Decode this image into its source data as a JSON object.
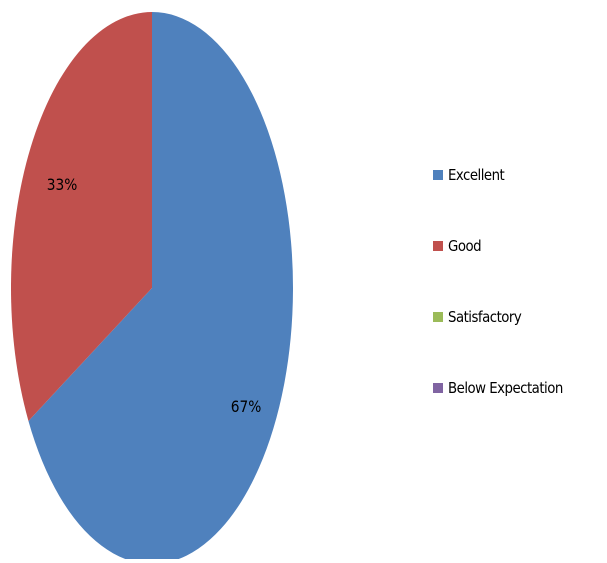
{
  "chart_data": {
    "type": "pie",
    "title": "",
    "labels": [
      "Excellent",
      "Good",
      "Satisfactory",
      "Below Expectation"
    ],
    "values": [
      67,
      33,
      0,
      0
    ],
    "data_labels": [
      "67%",
      "33%",
      "",
      ""
    ],
    "colors": [
      "#4f81bd",
      "#c0504d",
      "#9bbb59",
      "#8064a2"
    ],
    "start_angle_deg": 0,
    "direction": "clockwise",
    "legend_position": "right"
  },
  "legend": {
    "items": [
      {
        "label": "Excellent",
        "color": "#4f81bd"
      },
      {
        "label": "Good",
        "color": "#c0504d"
      },
      {
        "label": "Satisfactory",
        "color": "#9bbb59"
      },
      {
        "label": "Below Expectation",
        "color": "#8064a2"
      }
    ]
  }
}
